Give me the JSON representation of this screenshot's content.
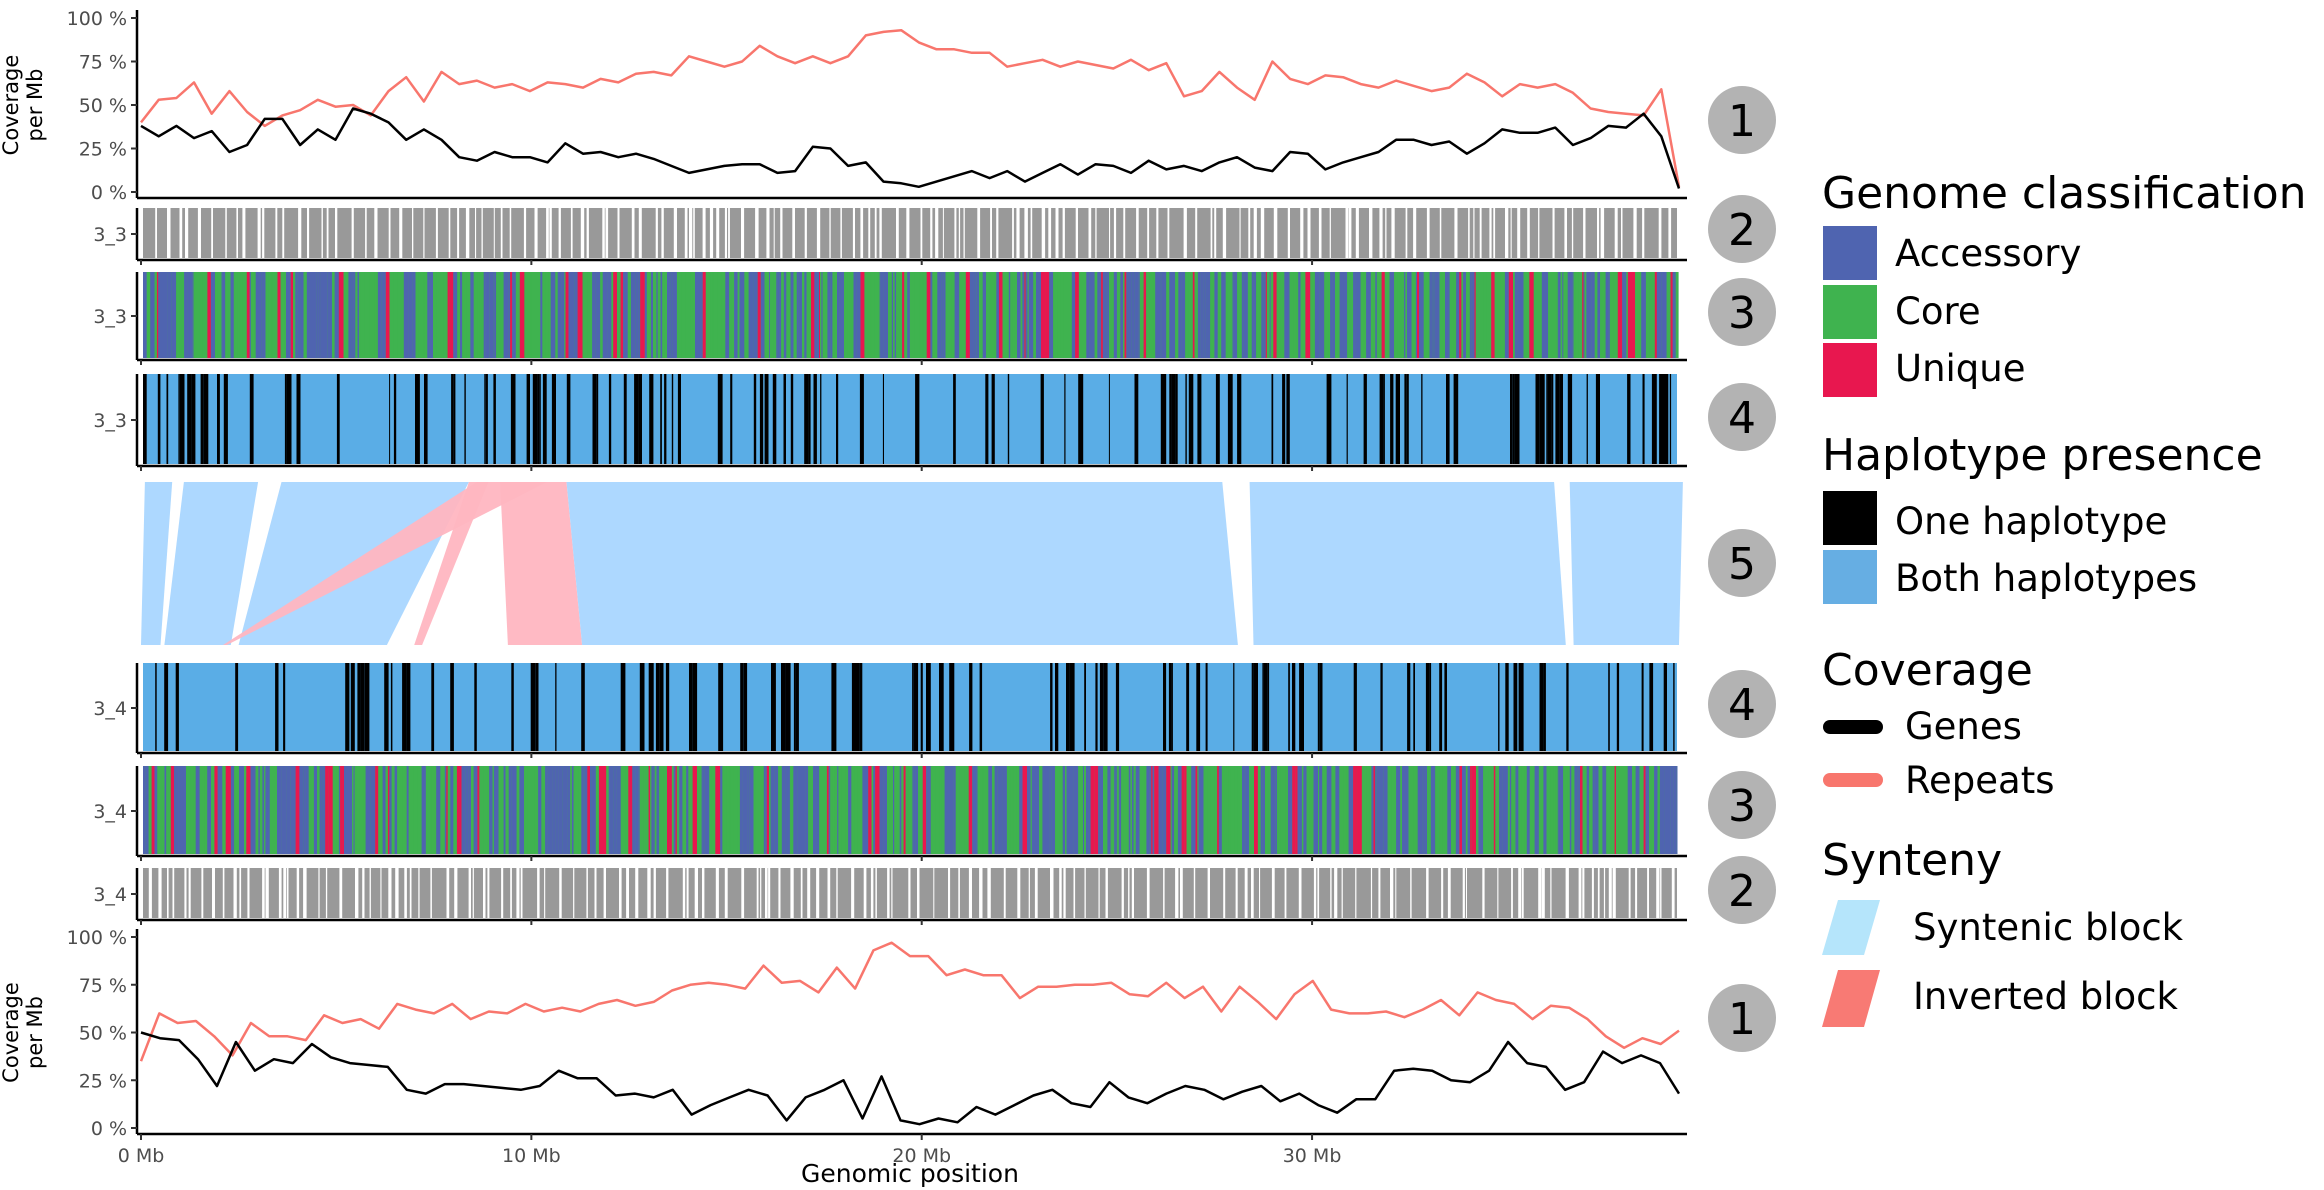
{
  "chart_data": {
    "type": "line",
    "xlabel": "Genomic position",
    "ylabel_lines": [
      "Coverage",
      "per Mb"
    ],
    "x_ticks": [
      "0 Mb",
      "10 Mb",
      "20 Mb",
      "30 Mb"
    ],
    "x_tick_values": [
      0,
      10,
      20,
      30
    ],
    "xlim": [
      0,
      39.4
    ],
    "y_ticks": [
      "0 %",
      "25 %",
      "50 %",
      "75 %",
      "100 %"
    ],
    "y_tick_values": [
      0,
      25,
      50,
      75,
      100
    ],
    "ylim": [
      0,
      100
    ],
    "haplotypes": [
      "3_3",
      "3_4"
    ],
    "top_coverage": {
      "genes": [
        38,
        32,
        38,
        31,
        35,
        23,
        27,
        42,
        42,
        27,
        36,
        30,
        48,
        45,
        40,
        30,
        36,
        30,
        20,
        18,
        23,
        20,
        20,
        17,
        28,
        22,
        23,
        20,
        22,
        19,
        15,
        11,
        13,
        15,
        16,
        16,
        11,
        12,
        26,
        25,
        15,
        17,
        6,
        5,
        3,
        6,
        9,
        12,
        8,
        12,
        6,
        11,
        16,
        10,
        16,
        15,
        11,
        18,
        13,
        15,
        12,
        17,
        20,
        14,
        12,
        23,
        22,
        13,
        17,
        20,
        23,
        30,
        30,
        27,
        29,
        22,
        28,
        36,
        34,
        34,
        37,
        27,
        31,
        38,
        37,
        45,
        32,
        2
      ],
      "repeats": [
        40,
        53,
        54,
        63,
        45,
        58,
        46,
        38,
        44,
        47,
        53,
        49,
        50,
        44,
        58,
        66,
        52,
        69,
        62,
        64,
        60,
        62,
        58,
        63,
        62,
        60,
        65,
        63,
        68,
        69,
        67,
        78,
        75,
        72,
        75,
        84,
        78,
        74,
        78,
        74,
        78,
        90,
        92,
        93,
        86,
        82,
        82,
        80,
        80,
        72,
        74,
        76,
        72,
        75,
        73,
        71,
        76,
        70,
        74,
        55,
        58,
        69,
        60,
        53,
        75,
        65,
        62,
        67,
        66,
        62,
        60,
        64,
        61,
        58,
        60,
        68,
        63,
        55,
        62,
        60,
        62,
        57,
        48,
        46,
        45,
        44,
        59,
        3
      ]
    },
    "bottom_coverage": {
      "genes": [
        50,
        47,
        46,
        36,
        22,
        45,
        30,
        36,
        34,
        44,
        37,
        34,
        33,
        32,
        20,
        18,
        23,
        23,
        22,
        21,
        20,
        22,
        30,
        26,
        26,
        17,
        18,
        16,
        20,
        7,
        12,
        16,
        20,
        17,
        4,
        16,
        20,
        25,
        5,
        27,
        4,
        2,
        5,
        3,
        11,
        7,
        12,
        17,
        20,
        13,
        11,
        24,
        16,
        13,
        18,
        22,
        20,
        15,
        19,
        22,
        14,
        18,
        12,
        8,
        15,
        15,
        30,
        31,
        30,
        25,
        24,
        30,
        45,
        34,
        32,
        20,
        24,
        40,
        34,
        38,
        34,
        18
      ],
      "repeats": [
        35,
        60,
        55,
        56,
        48,
        38,
        55,
        48,
        48,
        46,
        59,
        55,
        57,
        52,
        65,
        62,
        60,
        65,
        57,
        61,
        60,
        65,
        61,
        63,
        61,
        65,
        67,
        64,
        66,
        72,
        75,
        76,
        75,
        73,
        85,
        76,
        77,
        71,
        84,
        73,
        93,
        97,
        90,
        90,
        80,
        83,
        80,
        80,
        68,
        74,
        74,
        75,
        75,
        76,
        70,
        69,
        76,
        68,
        74,
        61,
        74,
        66,
        57,
        70,
        77,
        62,
        60,
        60,
        61,
        58,
        62,
        67,
        59,
        71,
        67,
        65,
        57,
        64,
        63,
        57,
        48,
        42,
        47,
        44,
        51
      ]
    },
    "synteny_blocks": [
      {
        "top": [
          0.1,
          0.8
        ],
        "bottom": [
          0.0,
          0.5
        ],
        "type": "syntenic"
      },
      {
        "top": [
          1.1,
          3.0
        ],
        "bottom": [
          0.6,
          2.3
        ],
        "type": "syntenic"
      },
      {
        "top": [
          3.6,
          8.4
        ],
        "bottom": [
          2.5,
          6.3
        ],
        "type": "syntenic"
      },
      {
        "top": [
          8.6,
          10.4
        ],
        "bottom": [
          2.1,
          2.2
        ],
        "type": "inverted"
      },
      {
        "top": [
          8.4,
          8.9
        ],
        "bottom": [
          7.0,
          7.2
        ],
        "type": "inverted"
      },
      {
        "top": [
          9.2,
          10.9
        ],
        "bottom": [
          9.4,
          11.3
        ],
        "type": "inverted"
      },
      {
        "top": [
          10.9,
          27.7
        ],
        "bottom": [
          11.3,
          28.1
        ],
        "type": "syntenic"
      },
      {
        "top": [
          28.4,
          36.2
        ],
        "bottom": [
          28.5,
          36.5
        ],
        "type": "syntenic"
      },
      {
        "top": [
          36.6,
          39.5
        ],
        "bottom": [
          36.7,
          39.4
        ],
        "type": "syntenic"
      }
    ],
    "track_numbers": [
      "1",
      "2",
      "3",
      "4",
      "5",
      "4",
      "3",
      "2",
      "1"
    ]
  },
  "colors": {
    "genes": "#000000",
    "repeats": "#f8766d",
    "accessory": "#4f64b0",
    "core": "#3fb34f",
    "unique": "#e8174f",
    "one_haplotype": "#000000",
    "both_haplotypes": "#5aade6",
    "gene_presence": "#999999",
    "syntenic": "#add8ff",
    "inverted": "#ffb6c1",
    "circle": "#b3b3b3"
  },
  "legend": {
    "genome_classification": {
      "title": "Genome classification",
      "items": [
        "Accessory",
        "Core",
        "Unique"
      ]
    },
    "haplotype_presence": {
      "title": "Haplotype presence",
      "items": [
        "One haplotype",
        "Both haplotypes"
      ]
    },
    "coverage": {
      "title": "Coverage",
      "items": [
        "Genes",
        "Repeats"
      ]
    },
    "synteny": {
      "title": "Synteny",
      "items": [
        "Syntenic block",
        "Inverted block"
      ]
    }
  }
}
